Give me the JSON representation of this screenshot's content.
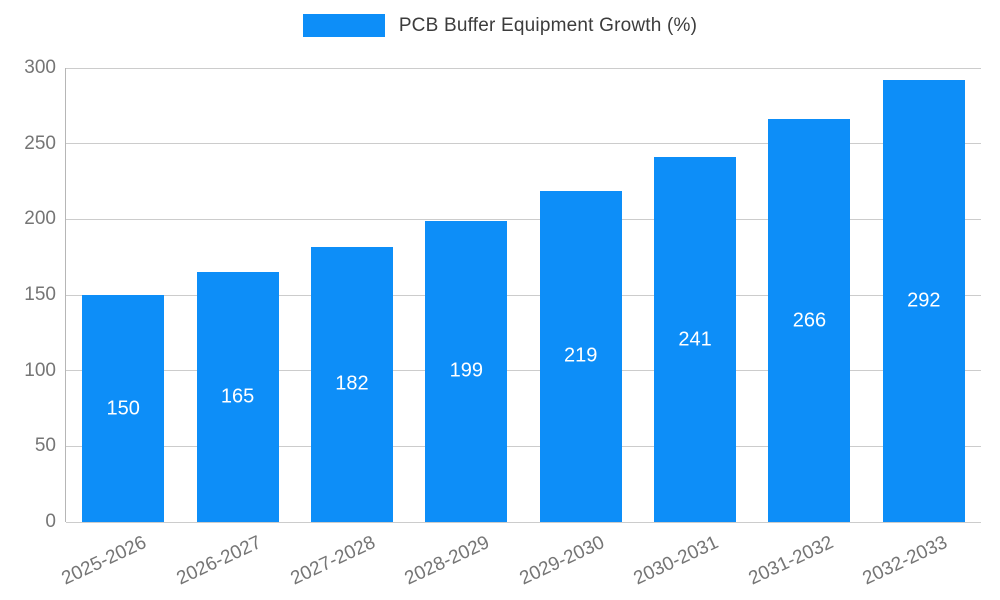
{
  "chart_data": {
    "type": "bar",
    "title": "PCB Buffer Equipment Growth (%)",
    "categories": [
      "2025-2026",
      "2026-2027",
      "2027-2028",
      "2028-2029",
      "2029-2030",
      "2030-2031",
      "2031-2032",
      "2032-2033"
    ],
    "values": [
      150,
      165,
      182,
      199,
      219,
      241,
      266,
      292
    ],
    "xlabel": "",
    "ylabel": "",
    "ylim": [
      0,
      300
    ],
    "yticks": [
      0,
      50,
      100,
      150,
      200,
      250,
      300
    ],
    "grid": true,
    "legend_position": "top-center",
    "bar_color": "#0d8ef8",
    "value_label_color": "#ffffff",
    "tick_label_color": "#757575",
    "grid_color": "#cccccc"
  }
}
